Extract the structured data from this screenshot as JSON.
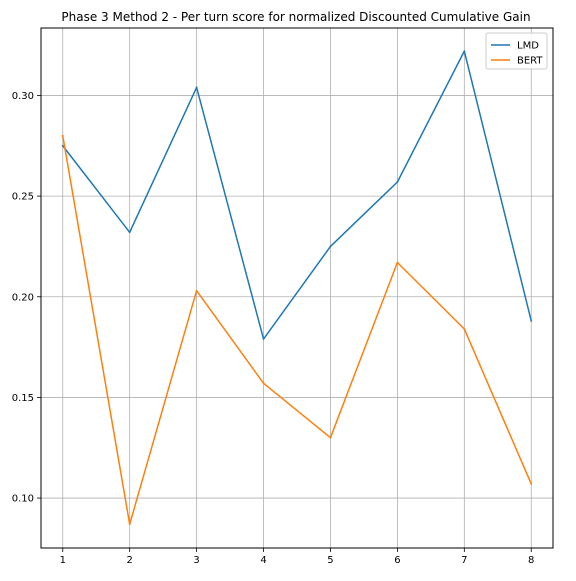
{
  "chart_data": {
    "type": "line",
    "title": "Phase 3 Method 2 - Per turn score for normalized Discounted Cumulative Gain",
    "xlabel": "",
    "ylabel": "",
    "x": [
      1,
      2,
      3,
      4,
      5,
      6,
      7,
      8
    ],
    "xticks": [
      "1",
      "2",
      "3",
      "4",
      "5",
      "6",
      "7",
      "8"
    ],
    "yticks": [
      "0.10",
      "0.15",
      "0.20",
      "0.25",
      "0.30"
    ],
    "xlim": [
      0.675,
      8.325
    ],
    "ylim": [
      0.0752,
      0.3335
    ],
    "grid": true,
    "legend_position": "top-right",
    "series": [
      {
        "name": "LMD",
        "color": "#1f77b4",
        "values": [
          0.275,
          0.232,
          0.304,
          0.179,
          0.225,
          0.257,
          0.322,
          0.188
        ]
      },
      {
        "name": "BERT",
        "color": "#ff7f0e",
        "values": [
          0.28,
          0.087,
          0.203,
          0.157,
          0.13,
          0.217,
          0.184,
          0.107
        ]
      }
    ]
  }
}
